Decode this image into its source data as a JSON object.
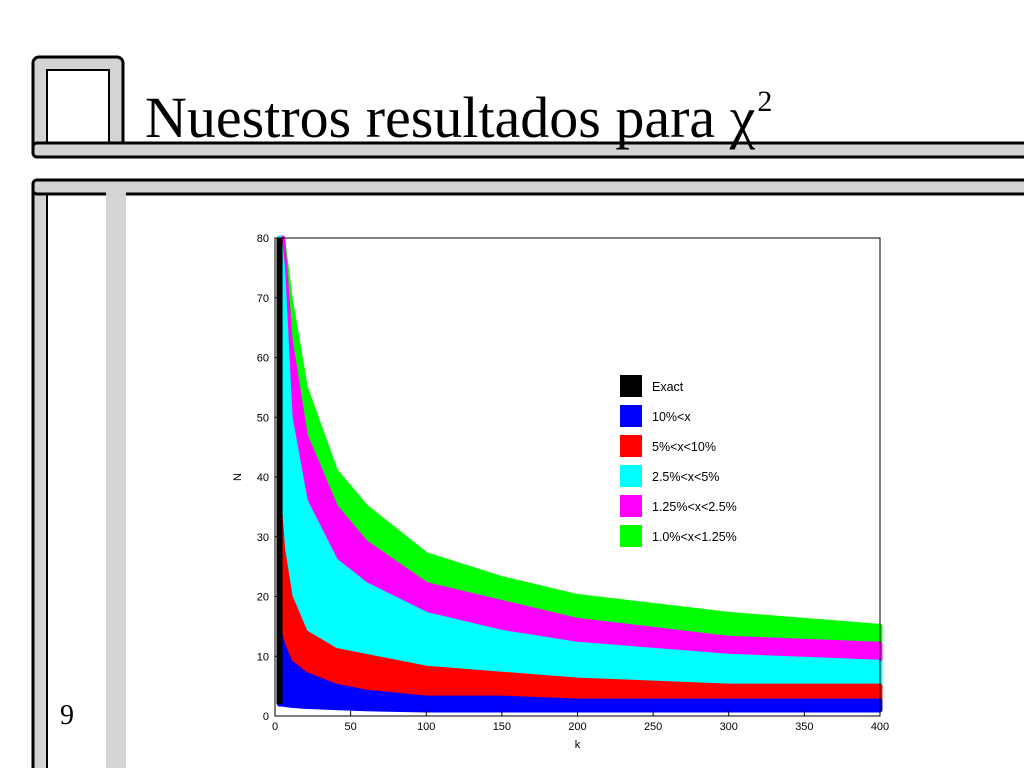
{
  "slide": {
    "title": "Nuestros resultados para χ",
    "title_superscript": "2",
    "page_number": "9"
  },
  "colors": {
    "frame_fill": "#d4d4d4",
    "frame_stroke": "#000000",
    "exact": "#000000",
    "band_10": "#0000ff",
    "band_5": "#ff0000",
    "band_2_5": "#00ffff",
    "band_1_25": "#ff00ff",
    "band_1_0": "#00ff00"
  },
  "chart_data": {
    "type": "area",
    "xlabel": "k",
    "ylabel": "N",
    "xlim": [
      0,
      400
    ],
    "ylim": [
      0,
      80
    ],
    "xticks": [
      0,
      50,
      100,
      150,
      200,
      250,
      300,
      350,
      400
    ],
    "yticks": [
      0,
      10,
      20,
      30,
      40,
      50,
      60,
      70,
      80
    ],
    "grid": false,
    "legend_position": "right",
    "exact": {
      "name": "Exact",
      "x": [
        1,
        2,
        3,
        4,
        5
      ],
      "y_max": [
        80,
        80,
        80,
        80,
        80
      ],
      "y_min": [
        2,
        2,
        2,
        2,
        2
      ]
    },
    "series": [
      {
        "name": "10%<x",
        "color_key": "band_10",
        "k": [
          3,
          5,
          10,
          20,
          40,
          60,
          100,
          150,
          200,
          300,
          400
        ],
        "lower": [
          2,
          2,
          1.8,
          1.6,
          1.4,
          1.2,
          1,
          1,
          1,
          1,
          1
        ],
        "upper": [
          14,
          12,
          9,
          7,
          5,
          4,
          3,
          3,
          2.5,
          2.5,
          2.5
        ]
      },
      {
        "name": "5%<x<10%",
        "color_key": "band_5",
        "k": [
          3,
          5,
          10,
          20,
          40,
          60,
          100,
          150,
          200,
          300,
          400
        ],
        "lower": [
          14,
          12,
          9,
          7,
          5,
          4,
          3,
          3,
          2.5,
          2.5,
          2.5
        ],
        "upper": [
          35,
          28,
          20,
          14,
          11,
          10,
          8,
          7,
          6,
          5,
          5
        ]
      },
      {
        "name": "2.5%<x<5%",
        "color_key": "band_2_5",
        "k": [
          3,
          5,
          10,
          20,
          40,
          60,
          100,
          150,
          200,
          300,
          400
        ],
        "lower": [
          35,
          28,
          20,
          14,
          11,
          10,
          8,
          7,
          6,
          5,
          5
        ],
        "upper": [
          80,
          75,
          50,
          36,
          26,
          22,
          17,
          14,
          12,
          10,
          9
        ]
      },
      {
        "name": "1.25%<x<2.5%",
        "color_key": "band_1_25",
        "k": [
          3,
          5,
          10,
          20,
          40,
          60,
          100,
          150,
          200,
          300,
          400
        ],
        "lower": [
          80,
          75,
          50,
          36,
          26,
          22,
          17,
          14,
          12,
          10,
          9
        ],
        "upper": [
          80,
          80,
          63,
          47,
          35,
          29,
          22,
          19,
          16,
          13,
          12
        ]
      },
      {
        "name": "1.0%<x<1.25%",
        "color_key": "band_1_0",
        "k": [
          3,
          5,
          10,
          20,
          40,
          60,
          100,
          150,
          200,
          300,
          400
        ],
        "lower": [
          80,
          80,
          63,
          47,
          35,
          29,
          22,
          19,
          16,
          13,
          12
        ],
        "upper": [
          80,
          80,
          70,
          55,
          41,
          35,
          27,
          23,
          20,
          17,
          15
        ]
      }
    ],
    "legend": [
      {
        "label": "Exact",
        "color_key": "exact"
      },
      {
        "label": "10%<x",
        "color_key": "band_10"
      },
      {
        "label": "5%<x<10%",
        "color_key": "band_5"
      },
      {
        "label": "2.5%<x<5%",
        "color_key": "band_2_5"
      },
      {
        "label": "1.25%<x<2.5%",
        "color_key": "band_1_25"
      },
      {
        "label": "1.0%<x<1.25%",
        "color_key": "band_1_0"
      }
    ]
  }
}
